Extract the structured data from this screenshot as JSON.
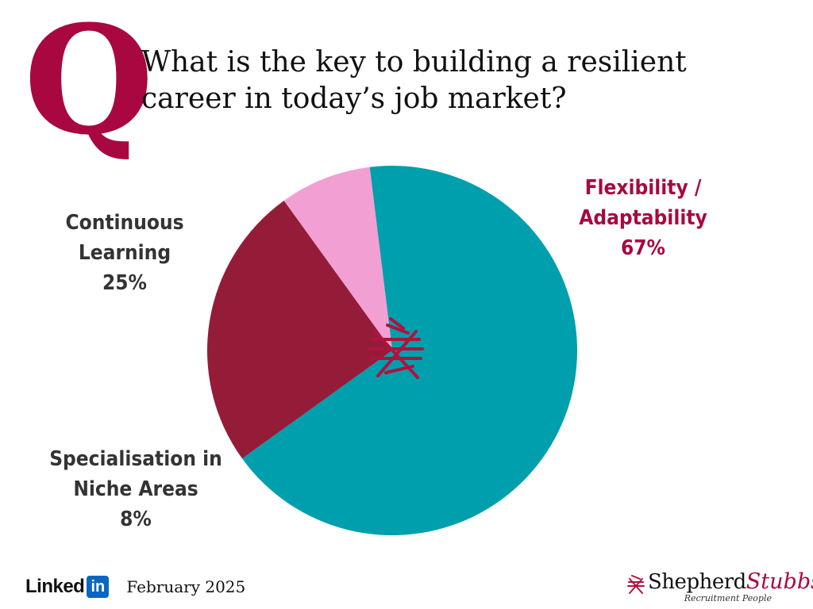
{
  "header": {
    "q_letter": "Q",
    "question": "What is the key to building a resilient career in today’s job market?"
  },
  "chart_data": {
    "type": "pie",
    "title": "",
    "slices": [
      {
        "label_lines": [
          "Flexibility /",
          "Adaptability"
        ],
        "value": 67,
        "value_label": "67%",
        "color": "#009fad"
      },
      {
        "label_lines": [
          "Continuous",
          "Learning"
        ],
        "value": 25,
        "value_label": "25%",
        "color": "#951c39"
      },
      {
        "label_lines": [
          "Specialisation in",
          "Niche Areas"
        ],
        "value": 8,
        "value_label": "8%",
        "color": "#f2a0d4"
      }
    ],
    "label_colors": [
      "#a8083f",
      "#333333",
      "#333333"
    ],
    "start_angle_deg": -7
  },
  "center_mark": {
    "icon": "shepherd-stubbs-cross-icon",
    "color": "#b0123f"
  },
  "footer": {
    "linkedin_word": "Linked",
    "linkedin_box": "in",
    "date": "February 2025",
    "brand_name_a": "Shepherd",
    "brand_name_b": "Stubbs",
    "brand_tagline": "Recruitment People"
  }
}
